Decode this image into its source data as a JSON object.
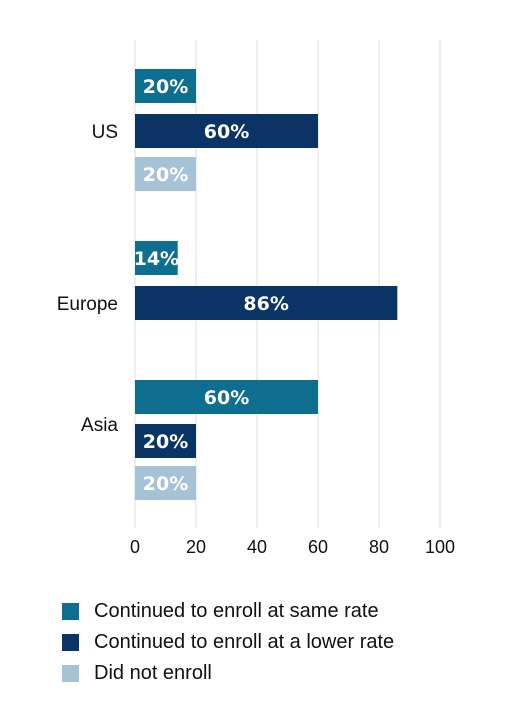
{
  "chart_data": {
    "type": "bar",
    "orientation": "horizontal",
    "categories": [
      "US",
      "Europe",
      "Asia"
    ],
    "series": [
      {
        "name": "Continued to enroll at same rate",
        "color": "#0e6e8f",
        "values": [
          20,
          14,
          60
        ],
        "labels": [
          "20%",
          "14%",
          "60%"
        ]
      },
      {
        "name": "Continued to enroll at a lower rate",
        "color": "#0a3366",
        "values": [
          60,
          86,
          20
        ],
        "labels": [
          "60%",
          "86%",
          "20%"
        ]
      },
      {
        "name": "Did not enroll",
        "color": "#a5c2d6",
        "values": [
          20,
          null,
          20
        ],
        "labels": [
          "20%",
          null,
          "20%"
        ]
      }
    ],
    "xaxis": {
      "range": [
        0,
        100
      ],
      "ticks": [
        "0",
        "20",
        "40",
        "60",
        "80",
        "100"
      ],
      "label": ""
    },
    "grid": true,
    "legend_position": "bottom-left"
  }
}
